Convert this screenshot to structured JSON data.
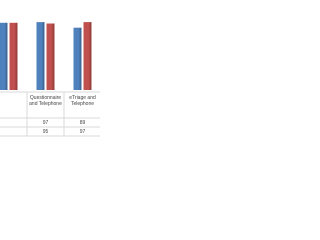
{
  "chart_data": {
    "type": "bar",
    "categories": [
      null,
      "Questionnaire and Telephone",
      "eTriage and Telephone"
    ],
    "series": [
      {
        "color": "#4f81bd",
        "values": [
          96,
          97,
          89
        ]
      },
      {
        "color": "#c0504d",
        "values": [
          96,
          95,
          97
        ]
      }
    ],
    "ylim": [
      0,
      100
    ]
  }
}
